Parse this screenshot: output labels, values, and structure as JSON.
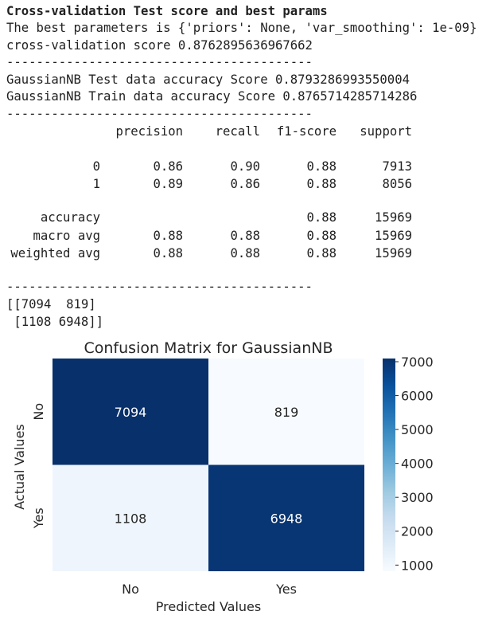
{
  "output": {
    "heading": "Cross-validation Test score and best params",
    "best_params_line": "The best parameters is {'priors': None, 'var_smoothing': 1e-09}",
    "cv_score_line": "cross-validation score 0.8762895636967662",
    "divider": "-----------------------------------------",
    "test_accuracy_line": "GaussianNB Test data accuracy Score 0.8793286993550004",
    "train_accuracy_line": "GaussianNB Train data accuracy Score 0.8765714285714286",
    "report": {
      "headers": [
        "precision",
        "recall",
        "f1-score",
        "support"
      ],
      "rows": [
        {
          "label": "0",
          "precision": "0.86",
          "recall": "0.90",
          "f1": "0.88",
          "support": "7913"
        },
        {
          "label": "1",
          "precision": "0.89",
          "recall": "0.86",
          "f1": "0.88",
          "support": "8056"
        },
        {
          "label": "accuracy",
          "precision": "",
          "recall": "",
          "f1": "0.88",
          "support": "15969"
        },
        {
          "label": "macro avg",
          "precision": "0.88",
          "recall": "0.88",
          "f1": "0.88",
          "support": "15969"
        },
        {
          "label": "weighted avg",
          "precision": "0.88",
          "recall": "0.88",
          "f1": "0.88",
          "support": "15969"
        }
      ]
    },
    "matrix_line_1": "[[7094  819]",
    "matrix_line_2": " [1108 6948]]"
  },
  "chart_data": {
    "type": "heatmap",
    "title": "Confusion Matrix for GaussianNB",
    "xlabel": "Predicted Values",
    "ylabel": "Actual Values",
    "x_categories": [
      "No",
      "Yes"
    ],
    "y_categories": [
      "No",
      "Yes"
    ],
    "values": [
      [
        7094,
        819
      ],
      [
        1108,
        6948
      ]
    ],
    "colormap": "Blues",
    "colorbar": {
      "range": [
        819,
        7094
      ],
      "ticks": [
        1000,
        2000,
        3000,
        4000,
        5000,
        6000,
        7000
      ],
      "tick_labels": [
        "1000",
        "2000",
        "3000",
        "4000",
        "5000",
        "6000",
        "7000"
      ]
    },
    "colors": {
      "high": "#08306b",
      "low": "#f7fbff",
      "text_light": "#ffffff",
      "text_dark": "#262626"
    }
  }
}
